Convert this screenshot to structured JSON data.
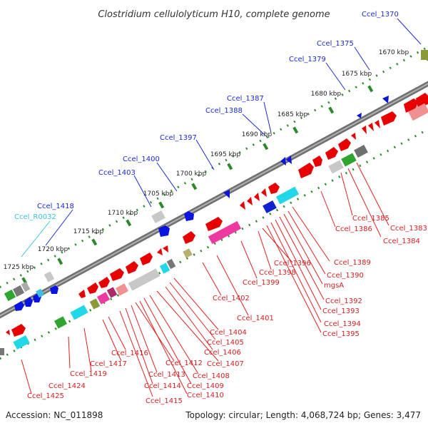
{
  "title": "Clostridium cellulolyticum H10, complete genome",
  "footer": {
    "accession": "Accession: NC_011898",
    "stats": "Topology: circular; Length: 4,068,724 bp; Genes: 3,477"
  },
  "kbp_ticks": [
    "1670 kbp",
    "1675 kbp",
    "1680 kbp",
    "1685 kbp",
    "1690 kbp",
    "1695 kbp",
    "1700 kbp",
    "1705 kbp",
    "1710 kbp",
    "1715 kbp",
    "1720 kbp",
    "1725 kbp"
  ],
  "labels_top": [
    "Ccel_1370",
    "Ccel_1375",
    "Ccel_1379",
    "Ccel_1387",
    "Ccel_1388",
    "Ccel_1397",
    "Ccel_1400",
    "Ccel_1403",
    "Ccel_1418",
    "Ccel_R0032"
  ],
  "labels_bottom": [
    "Ccel_1383",
    "Ccel_1384",
    "Ccel_1385",
    "Ccel_1386",
    "Ccel_1389",
    "Ccel_1390",
    "mgsA",
    "Ccel_1392",
    "Ccel_1393",
    "Ccel_1394",
    "Ccel_1395",
    "Ccel_1396",
    "Ccel_1398",
    "Ccel_1399",
    "Ccel_1401",
    "Ccel_1402",
    "Ccel_1404",
    "Ccel_1405",
    "Ccel_1406",
    "Ccel_1407",
    "Ccel_1408",
    "Ccel_1409",
    "Ccel_1410",
    "Ccel_1412",
    "Ccel_1413",
    "Ccel_1414",
    "Ccel_1415",
    "Ccel_1416",
    "Ccel_1417",
    "Ccel_1419",
    "Ccel_1424",
    "Ccel_1425"
  ],
  "colors": {
    "forward_strand": "#e80000",
    "reverse_strand": "#0a14e0",
    "backbone": "#777777",
    "gc_skew_dots": "#2a8a2a"
  }
}
